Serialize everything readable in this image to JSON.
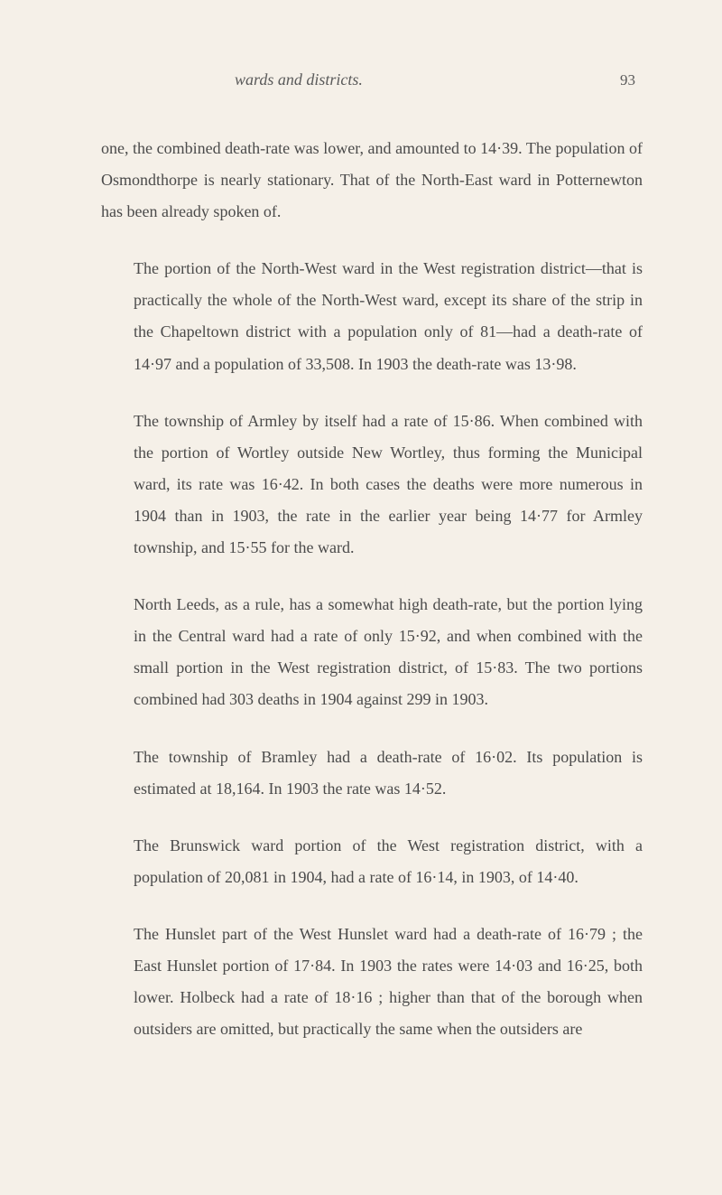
{
  "header": {
    "title": "wards and districts.",
    "pageNumber": "93"
  },
  "paragraphs": [
    {
      "text": "one, the combined death-rate was lower, and amounted to 14·39. The population of Osmondthorpe is nearly stationary. That of the North-East ward in Potternewton has been already spoken of.",
      "indent": false
    },
    {
      "text": "The portion of the North-West ward in the West registration district—that is practically the whole of the North-West ward, except its share of the strip in the Chapeltown district with a population only of 81—had a death-rate of 14·97 and a population of 33,508. In 1903 the death-rate was 13·98.",
      "indent": true
    },
    {
      "text": "The township of Armley by itself had a rate of 15·86. When combined with the portion of Wortley outside New Wortley, thus forming the Municipal ward, its rate was 16·42. In both cases the deaths were more numerous in 1904 than in 1903, the rate in the earlier year being 14·77 for Armley township, and 15·55 for the ward.",
      "indent": true
    },
    {
      "text": "North Leeds, as a rule, has a somewhat high death-rate, but the portion lying in the Central ward had a rate of only 15·92, and when combined with the small portion in the West registration district, of 15·83. The two portions combined had 303 deaths in 1904 against 299 in 1903.",
      "indent": true
    },
    {
      "text": "The township of Bramley had a death-rate of 16·02. Its population is estimated at 18,164. In 1903 the rate was 14·52.",
      "indent": true
    },
    {
      "text": "The Brunswick ward portion of the West registration district, with a population of 20,081 in 1904, had a rate of 16·14, in 1903, of 14·40.",
      "indent": true
    },
    {
      "text": "The Hunslet part of the West Hunslet ward had a death-rate of 16·79 ; the East Hunslet portion of 17·84. In 1903 the rates were 14·03 and 16·25, both lower. Holbeck had a rate of 18·16 ; higher than that of the borough when outsiders are omitted, but practically the same when the outsiders are",
      "indent": true
    }
  ]
}
